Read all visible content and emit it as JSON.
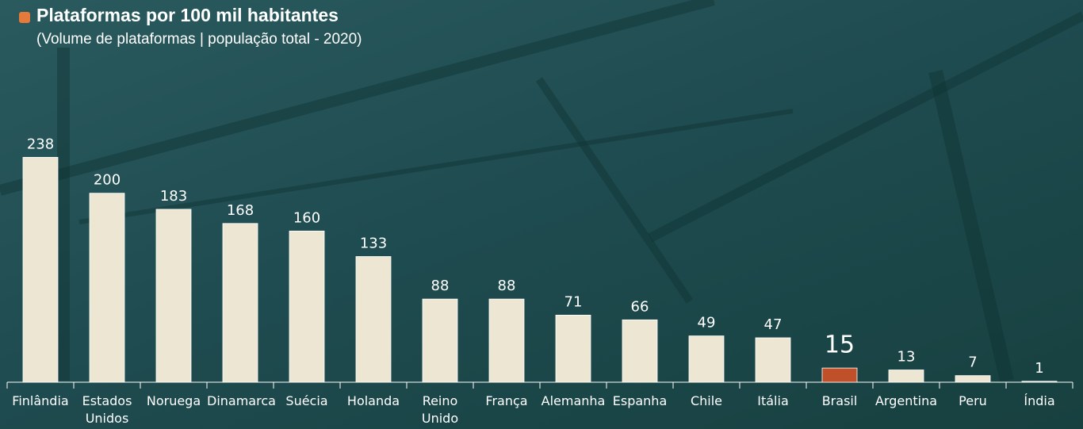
{
  "chart_data": {
    "type": "bar",
    "title": "Plataformas por 100 mil habitantes",
    "subtitle": "(Volume de plataformas | população total -  2020)",
    "categories": [
      "Finlândia",
      "Estados Unidos",
      "Noruega",
      "Dinamarca",
      "Suécia",
      "Holanda",
      "Reino Unido",
      "França",
      "Alemanha",
      "Espanha",
      "Chile",
      "Itália",
      "Brasil",
      "Argentina",
      "Peru",
      "Índia"
    ],
    "values": [
      238,
      200,
      183,
      168,
      160,
      133,
      88,
      88,
      71,
      66,
      49,
      47,
      15,
      13,
      7,
      1
    ],
    "colors": [
      "#ece6d3",
      "#ece6d3",
      "#ece6d3",
      "#ece6d3",
      "#ece6d3",
      "#ece6d3",
      "#ece6d3",
      "#ece6d3",
      "#ece6d3",
      "#ece6d3",
      "#ece6d3",
      "#ece6d3",
      "#c0502a",
      "#ece6d3",
      "#ece6d3",
      "#ece6d3"
    ],
    "ylim": [
      0,
      240
    ]
  }
}
